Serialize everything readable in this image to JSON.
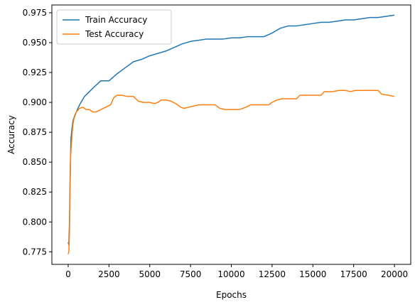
{
  "chart_data": {
    "type": "line",
    "title": "",
    "xlabel": "Epochs",
    "ylabel": "Accuracy",
    "xlim": [
      -1000,
      21000
    ],
    "ylim": [
      0.7645,
      0.9815
    ],
    "xticks": [
      0,
      2500,
      5000,
      7500,
      10000,
      12500,
      15000,
      17500,
      20000
    ],
    "xtick_labels": [
      "0",
      "2500",
      "5000",
      "7500",
      "10000",
      "12500",
      "15000",
      "17500",
      "20000"
    ],
    "yticks": [
      0.775,
      0.8,
      0.825,
      0.85,
      0.875,
      0.9,
      0.925,
      0.95,
      0.975
    ],
    "ytick_labels": [
      "0.775",
      "0.800",
      "0.825",
      "0.850",
      "0.875",
      "0.900",
      "0.925",
      "0.950",
      "0.975"
    ],
    "grid": false,
    "legend": "top-left",
    "series": [
      {
        "name": "Train Accuracy",
        "color": "#1f77b4",
        "points": [
          [
            0,
            0.783
          ],
          [
            40,
            0.781
          ],
          [
            80,
            0.8
          ],
          [
            120,
            0.84
          ],
          [
            170,
            0.87
          ],
          [
            230,
            0.878
          ],
          [
            300,
            0.885
          ],
          [
            400,
            0.889
          ],
          [
            500,
            0.892
          ],
          [
            700,
            0.898
          ],
          [
            1000,
            0.905
          ],
          [
            1300,
            0.909
          ],
          [
            1600,
            0.913
          ],
          [
            2000,
            0.918
          ],
          [
            2500,
            0.918
          ],
          [
            3000,
            0.924
          ],
          [
            3500,
            0.929
          ],
          [
            4000,
            0.934
          ],
          [
            4500,
            0.936
          ],
          [
            5000,
            0.939
          ],
          [
            5500,
            0.941
          ],
          [
            6000,
            0.943
          ],
          [
            6500,
            0.946
          ],
          [
            7000,
            0.949
          ],
          [
            7500,
            0.951
          ],
          [
            8000,
            0.952
          ],
          [
            8500,
            0.953
          ],
          [
            9000,
            0.953
          ],
          [
            9500,
            0.953
          ],
          [
            10000,
            0.954
          ],
          [
            10500,
            0.954
          ],
          [
            11000,
            0.955
          ],
          [
            11500,
            0.955
          ],
          [
            12000,
            0.955
          ],
          [
            12500,
            0.958
          ],
          [
            13000,
            0.962
          ],
          [
            13500,
            0.964
          ],
          [
            14000,
            0.964
          ],
          [
            14500,
            0.965
          ],
          [
            15000,
            0.966
          ],
          [
            15500,
            0.967
          ],
          [
            16000,
            0.967
          ],
          [
            16500,
            0.968
          ],
          [
            17000,
            0.969
          ],
          [
            17500,
            0.969
          ],
          [
            18000,
            0.97
          ],
          [
            18500,
            0.971
          ],
          [
            19000,
            0.971
          ],
          [
            19500,
            0.972
          ],
          [
            20000,
            0.973
          ]
        ]
      },
      {
        "name": "Test Accuracy",
        "color": "#ff7f0e",
        "points": [
          [
            0,
            0.773
          ],
          [
            40,
            0.775
          ],
          [
            80,
            0.79
          ],
          [
            120,
            0.83
          ],
          [
            150,
            0.855
          ],
          [
            200,
            0.865
          ],
          [
            250,
            0.875
          ],
          [
            300,
            0.882
          ],
          [
            350,
            0.886
          ],
          [
            400,
            0.888
          ],
          [
            500,
            0.892
          ],
          [
            700,
            0.895
          ],
          [
            900,
            0.896
          ],
          [
            1100,
            0.894
          ],
          [
            1300,
            0.894
          ],
          [
            1500,
            0.892
          ],
          [
            1700,
            0.892
          ],
          [
            2000,
            0.894
          ],
          [
            2300,
            0.896
          ],
          [
            2600,
            0.898
          ],
          [
            2800,
            0.904
          ],
          [
            3000,
            0.906
          ],
          [
            3300,
            0.906
          ],
          [
            3600,
            0.905
          ],
          [
            4000,
            0.905
          ],
          [
            4300,
            0.901
          ],
          [
            4600,
            0.9
          ],
          [
            5000,
            0.9
          ],
          [
            5300,
            0.899
          ],
          [
            5500,
            0.9
          ],
          [
            5700,
            0.902
          ],
          [
            6000,
            0.902
          ],
          [
            6300,
            0.901
          ],
          [
            6600,
            0.899
          ],
          [
            6900,
            0.896
          ],
          [
            7100,
            0.895
          ],
          [
            7400,
            0.896
          ],
          [
            7700,
            0.897
          ],
          [
            8000,
            0.898
          ],
          [
            8500,
            0.898
          ],
          [
            9000,
            0.898
          ],
          [
            9300,
            0.895
          ],
          [
            9600,
            0.894
          ],
          [
            10000,
            0.894
          ],
          [
            10500,
            0.894
          ],
          [
            10900,
            0.896
          ],
          [
            11200,
            0.898
          ],
          [
            11600,
            0.898
          ],
          [
            12000,
            0.898
          ],
          [
            12300,
            0.898
          ],
          [
            12500,
            0.9
          ],
          [
            12800,
            0.902
          ],
          [
            13100,
            0.903
          ],
          [
            13600,
            0.903
          ],
          [
            14000,
            0.903
          ],
          [
            14200,
            0.906
          ],
          [
            14600,
            0.906
          ],
          [
            15000,
            0.906
          ],
          [
            15500,
            0.906
          ],
          [
            15700,
            0.909
          ],
          [
            16200,
            0.909
          ],
          [
            16600,
            0.91
          ],
          [
            17000,
            0.91
          ],
          [
            17300,
            0.909
          ],
          [
            17600,
            0.91
          ],
          [
            18000,
            0.91
          ],
          [
            18500,
            0.91
          ],
          [
            19000,
            0.91
          ],
          [
            19200,
            0.907
          ],
          [
            19600,
            0.906
          ],
          [
            20000,
            0.905
          ]
        ]
      }
    ]
  }
}
